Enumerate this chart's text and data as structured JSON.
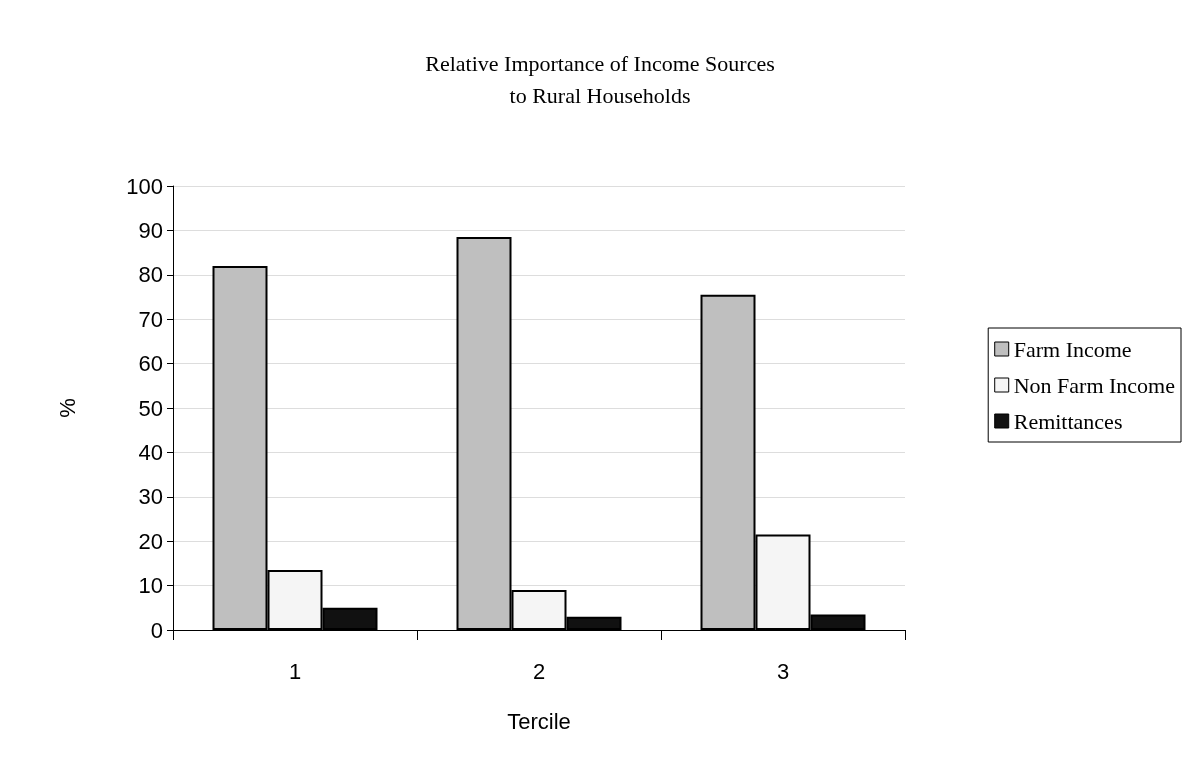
{
  "chart_data": {
    "type": "bar",
    "title": "Relative Importance of Income Sources\nto Rural Households",
    "xlabel": "Tercile",
    "ylabel": "%",
    "categories": [
      "1",
      "2",
      "3"
    ],
    "series": [
      {
        "name": "Farm Income",
        "color": "#bfbfbf",
        "values": [
          82,
          88.5,
          75.5
        ]
      },
      {
        "name": "Non Farm Income",
        "color": "#f5f5f5",
        "values": [
          13.5,
          9,
          21.5
        ]
      },
      {
        "name": "Remittances",
        "color": "#111111",
        "values": [
          5,
          3,
          3.5
        ]
      }
    ],
    "ylim": [
      0,
      100
    ],
    "yticks": [
      0,
      10,
      20,
      30,
      40,
      50,
      60,
      70,
      80,
      90,
      100
    ],
    "grid": "y",
    "legend": "right"
  }
}
